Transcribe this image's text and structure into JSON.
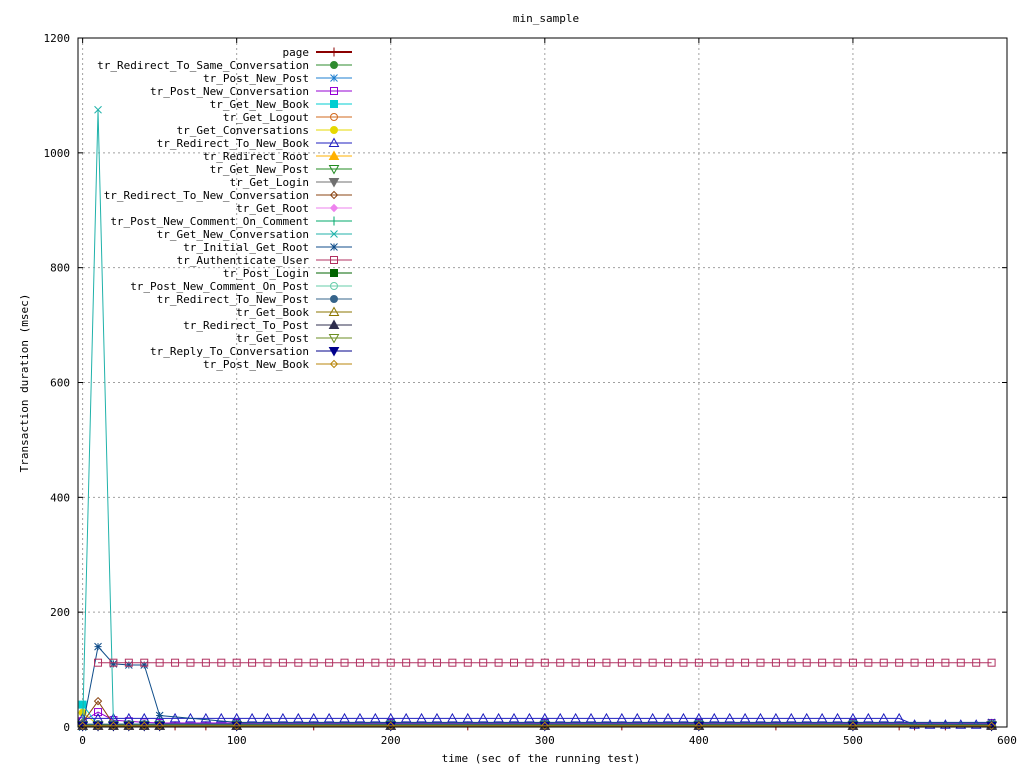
{
  "chart_data": {
    "type": "line",
    "title": "min_sample",
    "xlabel": "time (sec of the running test)",
    "ylabel": "Transaction duration (msec)",
    "xlim": [
      -3,
      600
    ],
    "ylim": [
      0,
      1200
    ],
    "xticks": [
      "0",
      "100",
      "200",
      "300",
      "400",
      "500",
      "600"
    ],
    "yticks": [
      "0",
      "200",
      "400",
      "600",
      "800",
      "1000",
      "1200"
    ],
    "grid": true,
    "legend_position": "top-left inside",
    "series": [
      {
        "name": "page",
        "color": "#8b0000",
        "marker": "plus",
        "x": [
          0,
          10,
          20,
          30,
          40,
          50,
          60,
          80,
          100,
          150,
          200,
          250,
          300,
          350,
          400,
          450,
          500,
          530,
          540,
          560,
          590
        ],
        "y": [
          3,
          2,
          2,
          2,
          2,
          2,
          2,
          2,
          2,
          2,
          2,
          2,
          2,
          2,
          2,
          2,
          2,
          2,
          2,
          2,
          2
        ]
      },
      {
        "name": "tr_Redirect_To_Same_Conversation",
        "color": "#2e8b2e",
        "marker": "filled-circle",
        "x": [
          0,
          10,
          20,
          30,
          40,
          50,
          100,
          200,
          300,
          400,
          500,
          590
        ],
        "y": [
          2,
          2,
          2,
          2,
          2,
          2,
          2,
          2,
          2,
          2,
          2,
          2
        ]
      },
      {
        "name": "tr_Post_New_Post",
        "color": "#1e7fd0",
        "marker": "star",
        "x": [
          0,
          10,
          20,
          30,
          40,
          50,
          100,
          200,
          300,
          400,
          500,
          590
        ],
        "y": [
          3,
          3,
          3,
          3,
          3,
          3,
          3,
          3,
          3,
          3,
          3,
          3
        ]
      },
      {
        "name": "tr_Post_New_Conversation",
        "color": "#9400d3",
        "marker": "open-square",
        "x": [
          0,
          10,
          20,
          30,
          40,
          50,
          100,
          200,
          300,
          400,
          500,
          590
        ],
        "y": [
          10,
          26,
          12,
          10,
          8,
          7,
          7,
          7,
          7,
          7,
          7,
          7
        ]
      },
      {
        "name": "tr_Get_New_Book",
        "color": "#00ced1",
        "marker": "filled-square",
        "x": [
          0,
          10,
          20,
          30,
          40,
          50,
          100,
          200,
          300,
          400,
          500,
          590
        ],
        "y": [
          39,
          3,
          3,
          3,
          3,
          3,
          3,
          3,
          3,
          3,
          3,
          3
        ]
      },
      {
        "name": "tr_Get_Logout",
        "color": "#d2691e",
        "marker": "open-circle",
        "x": [
          0,
          10,
          20,
          30,
          40,
          50,
          100,
          200,
          300,
          400,
          500,
          590
        ],
        "y": [
          2,
          2,
          2,
          2,
          2,
          2,
          2,
          2,
          2,
          2,
          2,
          2
        ]
      },
      {
        "name": "tr_Get_Conversations",
        "color": "#e6d800",
        "marker": "filled-circle",
        "x": [
          0,
          10,
          20,
          30,
          40,
          50,
          100,
          200,
          300,
          400,
          500,
          590
        ],
        "y": [
          25,
          4,
          4,
          4,
          4,
          4,
          4,
          4,
          4,
          4,
          4,
          4
        ]
      },
      {
        "name": "tr_Redirect_To_New_Book",
        "color": "#1f1fbf",
        "marker": "open-triangle-up",
        "x": [
          0,
          10,
          20,
          30,
          40,
          50,
          60,
          70,
          80,
          90,
          100,
          110,
          120,
          130,
          140,
          150,
          160,
          170,
          180,
          190,
          200,
          210,
          220,
          230,
          240,
          250,
          260,
          270,
          280,
          290,
          300,
          310,
          320,
          330,
          340,
          350,
          360,
          370,
          380,
          390,
          400,
          410,
          420,
          430,
          440,
          450,
          460,
          470,
          480,
          490,
          500,
          510,
          520,
          530,
          540,
          550,
          560,
          570,
          580,
          590
        ],
        "y": [
          15,
          15,
          15,
          15,
          15,
          15,
          15,
          15,
          15,
          15,
          15,
          15,
          15,
          15,
          15,
          15,
          15,
          15,
          15,
          15,
          15,
          15,
          15,
          15,
          15,
          15,
          15,
          15,
          15,
          15,
          15,
          15,
          15,
          15,
          15,
          15,
          15,
          15,
          15,
          15,
          15,
          15,
          15,
          15,
          15,
          15,
          15,
          15,
          15,
          15,
          15,
          15,
          15,
          15,
          4,
          4,
          4,
          4,
          4,
          4
        ]
      },
      {
        "name": "tr_Redirect_Root",
        "color": "#ffb000",
        "marker": "filled-triangle-up",
        "x": [
          0,
          10,
          20,
          30,
          40,
          50,
          100,
          200,
          300,
          400,
          500,
          590
        ],
        "y": [
          2,
          2,
          2,
          2,
          2,
          2,
          2,
          2,
          2,
          2,
          2,
          2
        ]
      },
      {
        "name": "tr_Get_New_Post",
        "color": "#228b22",
        "marker": "open-triangle-down",
        "x": [
          0,
          10,
          20,
          30,
          40,
          50,
          100,
          200,
          300,
          400,
          500,
          590
        ],
        "y": [
          3,
          3,
          3,
          3,
          3,
          3,
          3,
          3,
          3,
          3,
          3,
          3
        ]
      },
      {
        "name": "tr_Get_Login",
        "color": "#707070",
        "marker": "filled-triangle-down",
        "x": [
          0,
          10,
          20,
          30,
          40,
          50,
          100,
          200,
          300,
          400,
          500,
          590
        ],
        "y": [
          2,
          2,
          2,
          2,
          2,
          2,
          2,
          2,
          2,
          2,
          2,
          2
        ]
      },
      {
        "name": "tr_Redirect_To_New_Conversation",
        "color": "#8b4513",
        "marker": "open-diamond",
        "x": [
          0,
          10,
          20,
          30,
          40,
          50,
          100,
          200,
          300,
          400,
          500,
          590
        ],
        "y": [
          8,
          45,
          5,
          5,
          5,
          5,
          5,
          5,
          5,
          5,
          5,
          5
        ]
      },
      {
        "name": "tr_Get_Root",
        "color": "#ee82ee",
        "marker": "filled-diamond",
        "x": [
          0,
          10,
          20,
          30,
          40,
          50,
          100,
          200,
          300,
          400,
          500,
          590
        ],
        "y": [
          2,
          2,
          2,
          2,
          2,
          2,
          2,
          2,
          2,
          2,
          2,
          2
        ]
      },
      {
        "name": "tr_Post_New_Comment_On_Comment",
        "color": "#00a86b",
        "marker": "plus",
        "x": [
          0,
          10,
          20,
          30,
          40,
          50,
          100,
          200,
          300,
          400,
          500,
          590
        ],
        "y": [
          2,
          2,
          2,
          2,
          2,
          2,
          2,
          2,
          2,
          2,
          2,
          2
        ]
      },
      {
        "name": "tr_Get_New_Conversation",
        "color": "#20b2aa",
        "marker": "cross",
        "x": [
          0,
          10,
          20,
          30,
          40,
          50,
          100,
          200,
          300,
          400,
          500,
          590
        ],
        "y": [
          0,
          1075,
          5,
          5,
          5,
          5,
          5,
          5,
          5,
          5,
          5,
          5
        ]
      },
      {
        "name": "tr_Initial_Get_Root",
        "color": "#104e8b",
        "marker": "star",
        "x": [
          0,
          10,
          20,
          30,
          40,
          50,
          100,
          200,
          300,
          400,
          500,
          590
        ],
        "y": [
          0,
          140,
          110,
          108,
          108,
          20,
          8,
          8,
          8,
          8,
          8,
          8
        ]
      },
      {
        "name": "tr_Authenticate_User",
        "color": "#b03060",
        "marker": "open-square",
        "x": [
          10,
          20,
          30,
          40,
          50,
          60,
          70,
          80,
          90,
          100,
          110,
          120,
          130,
          140,
          150,
          160,
          170,
          180,
          190,
          200,
          210,
          220,
          230,
          240,
          250,
          260,
          270,
          280,
          290,
          300,
          310,
          320,
          330,
          340,
          350,
          360,
          370,
          380,
          390,
          400,
          410,
          420,
          430,
          440,
          450,
          460,
          470,
          480,
          490,
          500,
          510,
          520,
          530,
          540,
          550,
          560,
          570,
          580,
          590
        ],
        "y": [
          112,
          112,
          112,
          112,
          112,
          112,
          112,
          112,
          112,
          112,
          112,
          112,
          112,
          112,
          112,
          112,
          112,
          112,
          112,
          112,
          112,
          112,
          112,
          112,
          112,
          112,
          112,
          112,
          112,
          112,
          112,
          112,
          112,
          112,
          112,
          112,
          112,
          112,
          112,
          112,
          112,
          112,
          112,
          112,
          112,
          112,
          112,
          112,
          112,
          112,
          112,
          112,
          112,
          112,
          112,
          112,
          112,
          112,
          112
        ]
      },
      {
        "name": "tr_Post_Login",
        "color": "#006400",
        "marker": "filled-square",
        "x": [
          0,
          10,
          20,
          30,
          40,
          50,
          100,
          200,
          300,
          400,
          500,
          590
        ],
        "y": [
          3,
          3,
          3,
          3,
          3,
          3,
          3,
          3,
          3,
          3,
          3,
          3
        ]
      },
      {
        "name": "tr_Post_New_Comment_On_Post",
        "color": "#66cdaa",
        "marker": "open-circle",
        "x": [
          0,
          10,
          20,
          30,
          40,
          50,
          100,
          200,
          300,
          400,
          500,
          590
        ],
        "y": [
          2,
          2,
          2,
          2,
          2,
          2,
          2,
          2,
          2,
          2,
          2,
          2
        ]
      },
      {
        "name": "tr_Redirect_To_New_Post",
        "color": "#36648b",
        "marker": "filled-circle",
        "x": [
          0,
          10,
          20,
          30,
          40,
          50,
          100,
          200,
          300,
          400,
          500,
          590
        ],
        "y": [
          5,
          5,
          5,
          5,
          5,
          5,
          5,
          5,
          5,
          5,
          5,
          5
        ]
      },
      {
        "name": "tr_Get_Book",
        "color": "#8b7500",
        "marker": "open-triangle-up",
        "x": [
          0,
          10,
          20,
          30,
          40,
          50,
          100,
          200,
          300,
          400,
          500,
          590
        ],
        "y": [
          2,
          2,
          2,
          2,
          2,
          2,
          2,
          2,
          2,
          2,
          2,
          2
        ]
      },
      {
        "name": "tr_Redirect_To_Post",
        "color": "#2f2f4f",
        "marker": "filled-triangle-up",
        "x": [
          0,
          10,
          20,
          30,
          40,
          50,
          100,
          200,
          300,
          400,
          500,
          590
        ],
        "y": [
          2,
          2,
          2,
          2,
          2,
          2,
          2,
          2,
          2,
          2,
          2,
          2
        ]
      },
      {
        "name": "tr_Get_Post",
        "color": "#6b8e23",
        "marker": "open-triangle-down",
        "x": [
          0,
          10,
          20,
          30,
          40,
          50,
          100,
          200,
          300,
          400,
          500,
          590
        ],
        "y": [
          2,
          2,
          2,
          2,
          2,
          2,
          2,
          2,
          2,
          2,
          2,
          2
        ]
      },
      {
        "name": "tr_Reply_To_Conversation",
        "color": "#00008b",
        "marker": "filled-triangle-down",
        "x": [
          0,
          10,
          20,
          30,
          40,
          50,
          100,
          200,
          300,
          400,
          500,
          590
        ],
        "y": [
          2,
          2,
          2,
          2,
          2,
          2,
          2,
          2,
          2,
          2,
          2,
          2
        ]
      },
      {
        "name": "tr_Post_New_Book",
        "color": "#b8860b",
        "marker": "open-diamond",
        "x": [
          0,
          10,
          20,
          30,
          40,
          50,
          100,
          200,
          300,
          400,
          500,
          590
        ],
        "y": [
          2,
          2,
          2,
          2,
          2,
          2,
          2,
          2,
          2,
          2,
          2,
          2
        ]
      }
    ]
  }
}
